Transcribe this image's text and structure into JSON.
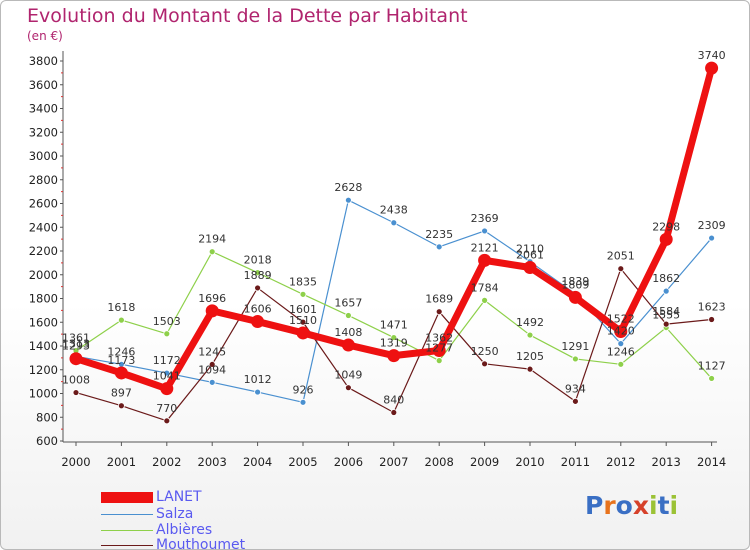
{
  "title": "Evolution du Montant de la Dette par Habitant",
  "subtitle": "(en €)",
  "logo": {
    "text": "Proxiti",
    "letter_colors": [
      "#3a6fc4",
      "#e8731c",
      "#3a6fc4",
      "#d6412a",
      "#9bc235",
      "#3a6fc4",
      "#9bc235"
    ]
  },
  "legend": [
    {
      "label": "LANET",
      "color": "#ee1111",
      "line_weight": "thick"
    },
    {
      "label": "Salza",
      "color": "#4a90d0",
      "line_weight": "thin"
    },
    {
      "label": "Albières",
      "color": "#8ed04a",
      "line_weight": "thin"
    },
    {
      "label": "Mouthoumet",
      "color": "#6b1a1a",
      "line_weight": "thin"
    }
  ],
  "chart_data": {
    "type": "line",
    "title": "Evolution du Montant de la Dette par Habitant",
    "subtitle": "(en €)",
    "x": [
      "2000",
      "2001",
      "2002",
      "2003",
      "2004",
      "2005",
      "2006",
      "2007",
      "2008",
      "2009",
      "2010",
      "2011",
      "2012",
      "2013",
      "2014"
    ],
    "yticks": [
      600,
      800,
      1000,
      1200,
      1400,
      1600,
      1800,
      2000,
      2200,
      2400,
      2600,
      2800,
      3000,
      3200,
      3400,
      3600,
      3800
    ],
    "ylim": [
      600,
      3800
    ],
    "grid": false,
    "legend_position": "bottom-left",
    "series": [
      {
        "name": "Salza",
        "color": "#4a90d0",
        "values": [
          1313,
          1246,
          1172,
          1094,
          1012,
          926,
          2628,
          2438,
          2235,
          2369,
          2110,
          1839,
          1420,
          1862,
          2309
        ],
        "labels": [
          "1313",
          "1246",
          "1172",
          "1094",
          "1012",
          "926",
          "2628",
          "2438",
          "2235",
          "2369",
          "2110",
          "1839",
          "1420",
          "1862",
          "2309"
        ]
      },
      {
        "name": "Albières",
        "color": "#8ed04a",
        "values": [
          1361,
          1618,
          1503,
          2194,
          2018,
          1835,
          1657,
          1471,
          1277,
          1784,
          1492,
          1291,
          1246,
          1555,
          1127
        ],
        "labels": [
          "1361",
          "1618",
          "1503",
          "2194",
          "2018",
          "1835",
          "1657",
          "1471",
          "1277",
          "1784",
          "1492",
          "1291",
          "1246",
          "1555",
          "1127"
        ]
      },
      {
        "name": "Mouthoumet",
        "color": "#6b1a1a",
        "values": [
          1008,
          897,
          770,
          1245,
          1889,
          1601,
          1049,
          840,
          1689,
          1250,
          1205,
          934,
          2051,
          1584,
          1623
        ],
        "labels": [
          "1008",
          "897",
          "770",
          "1245",
          "1889",
          "1601",
          "1049",
          "840",
          "1689",
          "1250",
          "1205",
          "934",
          "2051",
          "1584",
          "1623"
        ]
      },
      {
        "name": "LANET",
        "color": "#ee1111",
        "values": [
          1293,
          1173,
          1041,
          1696,
          1606,
          1510,
          1408,
          1319,
          1362,
          2121,
          2061,
          1809,
          1522,
          2298,
          3740
        ],
        "labels": [
          "1293",
          "1173",
          "1041",
          "1696",
          "1606",
          "1510",
          "1408",
          "1319",
          "1362",
          "2121",
          "2061",
          "1809",
          "1522",
          "2298",
          "3740"
        ]
      }
    ]
  }
}
